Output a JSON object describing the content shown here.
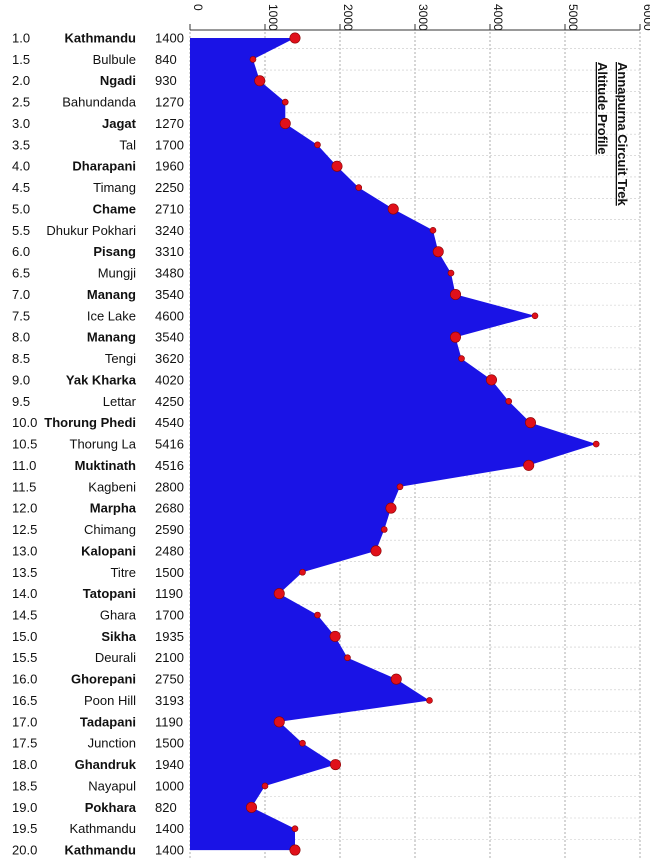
{
  "chart_data": {
    "type": "area",
    "orientation": "horizontal",
    "title": "Annapurna Circuit Trek",
    "subtitle": "Altitude Profile",
    "xlim": [
      0,
      6000
    ],
    "xticks": [
      0,
      1000,
      2000,
      3000,
      4000,
      5000,
      6000
    ],
    "grid": true,
    "fill_color": "#1a13e6",
    "marker_color": "#e0101a",
    "rows": [
      {
        "day": "1.0",
        "place": "Kathmandu",
        "altitude": 1400,
        "major": true
      },
      {
        "day": "1.5",
        "place": "Bulbule",
        "altitude": 840,
        "major": false
      },
      {
        "day": "2.0",
        "place": "Ngadi",
        "altitude": 930,
        "major": true
      },
      {
        "day": "2.5",
        "place": "Bahundanda",
        "altitude": 1270,
        "major": false
      },
      {
        "day": "3.0",
        "place": "Jagat",
        "altitude": 1270,
        "major": true
      },
      {
        "day": "3.5",
        "place": "Tal",
        "altitude": 1700,
        "major": false
      },
      {
        "day": "4.0",
        "place": "Dharapani",
        "altitude": 1960,
        "major": true
      },
      {
        "day": "4.5",
        "place": "Timang",
        "altitude": 2250,
        "major": false
      },
      {
        "day": "5.0",
        "place": "Chame",
        "altitude": 2710,
        "major": true
      },
      {
        "day": "5.5",
        "place": "Dhukur Pokhari",
        "altitude": 3240,
        "major": false
      },
      {
        "day": "6.0",
        "place": "Pisang",
        "altitude": 3310,
        "major": true
      },
      {
        "day": "6.5",
        "place": "Mungji",
        "altitude": 3480,
        "major": false
      },
      {
        "day": "7.0",
        "place": "Manang",
        "altitude": 3540,
        "major": true
      },
      {
        "day": "7.5",
        "place": "Ice Lake",
        "altitude": 4600,
        "major": false
      },
      {
        "day": "8.0",
        "place": "Manang",
        "altitude": 3540,
        "major": true
      },
      {
        "day": "8.5",
        "place": "Tengi",
        "altitude": 3620,
        "major": false
      },
      {
        "day": "9.0",
        "place": "Yak Kharka",
        "altitude": 4020,
        "major": true
      },
      {
        "day": "9.5",
        "place": "Lettar",
        "altitude": 4250,
        "major": false
      },
      {
        "day": "10.0",
        "place": "Thorung Phedi",
        "altitude": 4540,
        "major": true
      },
      {
        "day": "10.5",
        "place": "Thorung La",
        "altitude": 5416,
        "major": false
      },
      {
        "day": "11.0",
        "place": "Muktinath",
        "altitude": 4516,
        "major": true
      },
      {
        "day": "11.5",
        "place": "Kagbeni",
        "altitude": 2800,
        "major": false
      },
      {
        "day": "12.0",
        "place": "Marpha",
        "altitude": 2680,
        "major": true
      },
      {
        "day": "12.5",
        "place": "Chimang",
        "altitude": 2590,
        "major": false
      },
      {
        "day": "13.0",
        "place": "Kalopani",
        "altitude": 2480,
        "major": true
      },
      {
        "day": "13.5",
        "place": "Titre",
        "altitude": 1500,
        "major": false
      },
      {
        "day": "14.0",
        "place": "Tatopani",
        "altitude": 1190,
        "major": true
      },
      {
        "day": "14.5",
        "place": "Ghara",
        "altitude": 1700,
        "major": false
      },
      {
        "day": "15.0",
        "place": "Sikha",
        "altitude": 1935,
        "major": true
      },
      {
        "day": "15.5",
        "place": "Deurali",
        "altitude": 2100,
        "major": false
      },
      {
        "day": "16.0",
        "place": "Ghorepani",
        "altitude": 2750,
        "major": true
      },
      {
        "day": "16.5",
        "place": "Poon Hill",
        "altitude": 3193,
        "major": false
      },
      {
        "day": "17.0",
        "place": "Tadapani",
        "altitude": 1190,
        "major": true
      },
      {
        "day": "17.5",
        "place": "Junction",
        "altitude": 1500,
        "major": false
      },
      {
        "day": "18.0",
        "place": "Ghandruk",
        "altitude": 1940,
        "major": true
      },
      {
        "day": "18.5",
        "place": "Nayapul",
        "altitude": 1000,
        "major": false
      },
      {
        "day": "19.0",
        "place": "Pokhara",
        "altitude": 820,
        "major": true
      },
      {
        "day": "19.5",
        "place": "Kathmandu",
        "altitude": 1400,
        "major": false
      },
      {
        "day": "20.0",
        "place": "Kathmandu",
        "altitude": 1400,
        "major": true
      }
    ]
  }
}
